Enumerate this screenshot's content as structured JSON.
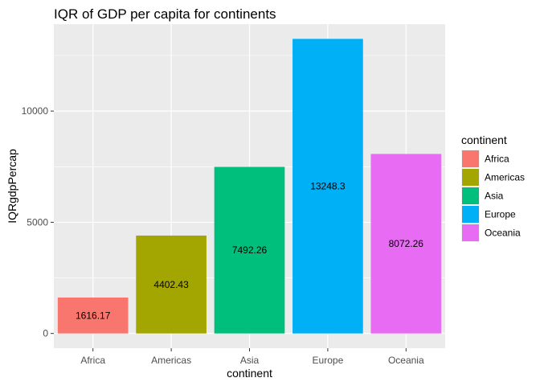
{
  "chart_data": {
    "type": "bar",
    "title": "IQR of GDP per capita for continents",
    "xlabel": "continent",
    "ylabel": "IQRgdpPercap",
    "categories": [
      "Africa",
      "Americas",
      "Asia",
      "Europe",
      "Oceania"
    ],
    "values": [
      1616.17,
      4402.43,
      7492.26,
      13248.3,
      8072.26
    ],
    "data_labels": [
      "1616.17",
      "4402.43",
      "7492.26",
      "13248.3",
      "8072.26"
    ],
    "colors": [
      "#F8766D",
      "#A3A500",
      "#00BF7D",
      "#00B0F6",
      "#E76BF3"
    ],
    "yticks": [
      0,
      5000,
      10000
    ],
    "ytick_labels": [
      "0",
      "5000",
      "10000"
    ],
    "ylim": [
      -662.4,
      13910.7
    ],
    "grid": true,
    "legend": {
      "title": "continent",
      "placement": "right",
      "items": [
        "Africa",
        "Americas",
        "Asia",
        "Europe",
        "Oceania"
      ]
    }
  }
}
